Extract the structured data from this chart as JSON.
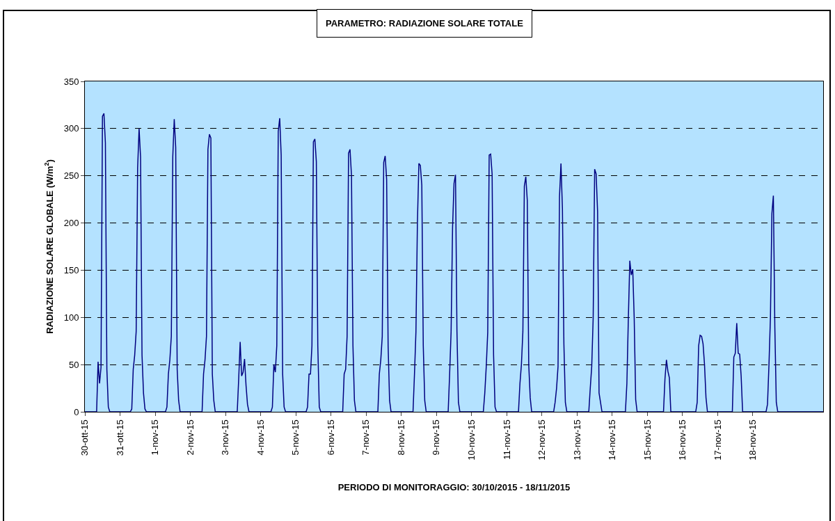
{
  "chart_data": {
    "type": "line",
    "title": "PARAMETRO: RADIAZIONE SOLARE TOTALE",
    "xlabel": "PERIODO DI MONITORAGGIO: 30/10/2015 - 18/11/2015",
    "ylabel": "RADIAZIONE SOLARE GLOBALE (W/m$^{2}$)",
    "xlim": [
      "2015-10-30",
      "2015-11-20"
    ],
    "xticks": [
      {
        "value": "2015-10-30",
        "label": "30-ott-15"
      },
      {
        "value": "2015-10-31",
        "label": "31-ott-15"
      },
      {
        "value": "2015-11-01",
        "label": "1-nov-15"
      },
      {
        "value": "2015-11-02",
        "label": "2-nov-15"
      },
      {
        "value": "2015-11-03",
        "label": "3-nov-15"
      },
      {
        "value": "2015-11-04",
        "label": "4-nov-15"
      },
      {
        "value": "2015-11-05",
        "label": "5-nov-15"
      },
      {
        "value": "2015-11-06",
        "label": "6-nov-15"
      },
      {
        "value": "2015-11-07",
        "label": "7-nov-15"
      },
      {
        "value": "2015-11-08",
        "label": "8-nov-15"
      },
      {
        "value": "2015-11-09",
        "label": "9-nov-15"
      },
      {
        "value": "2015-11-10",
        "label": "10-nov-15"
      },
      {
        "value": "2015-11-11",
        "label": "11-nov-15"
      },
      {
        "value": "2015-11-12",
        "label": "12-nov-15"
      },
      {
        "value": "2015-11-13",
        "label": "13-nov-15"
      },
      {
        "value": "2015-11-14",
        "label": "14-nov-15"
      },
      {
        "value": "2015-11-15",
        "label": "15-nov-15"
      },
      {
        "value": "2015-11-16",
        "label": "16-nov-15"
      },
      {
        "value": "2015-11-17",
        "label": "17-nov-15"
      },
      {
        "value": "2015-11-18",
        "label": "18-nov-15"
      }
    ],
    "ylim": [
      0,
      350
    ],
    "yticks": [
      0,
      50,
      100,
      150,
      200,
      250,
      300,
      350
    ],
    "grid": "y",
    "marker": "none",
    "line_style": "solid",
    "series": [
      {
        "color": "#000080",
        "x": [
          "2015-10-30T00:00",
          "2015-10-30T08:00",
          "2015-10-30T09:00",
          "2015-10-30T10:00",
          "2015-10-30T11:00",
          "2015-10-30T12:00",
          "2015-10-30T13:00",
          "2015-10-30T14:00",
          "2015-10-30T15:00",
          "2015-10-30T16:00",
          "2015-10-30T17:00",
          "2015-10-31T07:00",
          "2015-10-31T08:00",
          "2015-10-31T09:00",
          "2015-10-31T10:00",
          "2015-10-31T11:00",
          "2015-10-31T12:00",
          "2015-10-31T13:00",
          "2015-10-31T14:00",
          "2015-10-31T15:00",
          "2015-10-31T16:00",
          "2015-10-31T17:00",
          "2015-10-31T18:00",
          "2015-11-01T07:00",
          "2015-11-01T08:00",
          "2015-11-01T09:00",
          "2015-11-01T10:00",
          "2015-11-01T11:00",
          "2015-11-01T12:00",
          "2015-11-01T13:00",
          "2015-11-01T14:00",
          "2015-11-01T15:00",
          "2015-11-01T16:00",
          "2015-11-01T17:00",
          "2015-11-02T08:00",
          "2015-11-02T09:00",
          "2015-11-02T10:00",
          "2015-11-02T11:00",
          "2015-11-02T12:00",
          "2015-11-02T13:00",
          "2015-11-02T14:00",
          "2015-11-02T15:00",
          "2015-11-02T16:00",
          "2015-11-02T17:00",
          "2015-11-03T08:00",
          "2015-11-03T09:00",
          "2015-11-03T10:00",
          "2015-11-03T11:00",
          "2015-11-03T12:00",
          "2015-11-03T13:00",
          "2015-11-03T14:00",
          "2015-11-03T15:00",
          "2015-11-03T16:00",
          "2015-11-04T07:00",
          "2015-11-04T08:00",
          "2015-11-04T09:00",
          "2015-11-04T10:00",
          "2015-11-04T11:00",
          "2015-11-04T12:00",
          "2015-11-04T13:00",
          "2015-11-04T14:00",
          "2015-11-04T15:00",
          "2015-11-04T16:00",
          "2015-11-04T17:00",
          "2015-11-05T07:00",
          "2015-11-05T08:00",
          "2015-11-05T09:00",
          "2015-11-05T10:00",
          "2015-11-05T11:00",
          "2015-11-05T12:00",
          "2015-11-05T13:00",
          "2015-11-05T14:00",
          "2015-11-05T15:00",
          "2015-11-05T16:00",
          "2015-11-05T17:00",
          "2015-11-06T08:00",
          "2015-11-06T09:00",
          "2015-11-06T10:00",
          "2015-11-06T11:00",
          "2015-11-06T12:00",
          "2015-11-06T13:00",
          "2015-11-06T14:00",
          "2015-11-06T15:00",
          "2015-11-06T16:00",
          "2015-11-06T17:00",
          "2015-11-07T08:00",
          "2015-11-07T09:00",
          "2015-11-07T10:00",
          "2015-11-07T11:00",
          "2015-11-07T12:00",
          "2015-11-07T13:00",
          "2015-11-07T14:00",
          "2015-11-07T15:00",
          "2015-11-07T16:00",
          "2015-11-07T17:00",
          "2015-11-08T08:00",
          "2015-11-08T09:00",
          "2015-11-08T10:00",
          "2015-11-08T11:00",
          "2015-11-08T12:00",
          "2015-11-08T13:00",
          "2015-11-08T14:00",
          "2015-11-08T15:00",
          "2015-11-08T16:00",
          "2015-11-08T17:00",
          "2015-11-09T08:00",
          "2015-11-09T09:00",
          "2015-11-09T10:00",
          "2015-11-09T11:00",
          "2015-11-09T12:00",
          "2015-11-09T13:00",
          "2015-11-09T14:00",
          "2015-11-09T15:00",
          "2015-11-09T16:00",
          "2015-11-10T08:00",
          "2015-11-10T09:00",
          "2015-11-10T10:00",
          "2015-11-10T11:00",
          "2015-11-10T12:00",
          "2015-11-10T13:00",
          "2015-11-10T14:00",
          "2015-11-10T15:00",
          "2015-11-10T16:00",
          "2015-11-10T17:00",
          "2015-11-11T08:00",
          "2015-11-11T09:00",
          "2015-11-11T10:00",
          "2015-11-11T11:00",
          "2015-11-11T12:00",
          "2015-11-11T13:00",
          "2015-11-11T14:00",
          "2015-11-11T15:00",
          "2015-11-11T16:00",
          "2015-11-11T17:00",
          "2015-11-12T08:00",
          "2015-11-12T09:00",
          "2015-11-12T10:00",
          "2015-11-12T11:00",
          "2015-11-12T12:00",
          "2015-11-12T13:00",
          "2015-11-12T14:00",
          "2015-11-12T15:00",
          "2015-11-12T16:00",
          "2015-11-12T17:00",
          "2015-11-13T08:00",
          "2015-11-13T09:00",
          "2015-11-13T10:00",
          "2015-11-13T11:00",
          "2015-11-13T12:00",
          "2015-11-13T13:00",
          "2015-11-13T14:00",
          "2015-11-13T15:00",
          "2015-11-13T16:00",
          "2015-11-13T17:00",
          "2015-11-14T09:00",
          "2015-11-14T10:00",
          "2015-11-14T11:00",
          "2015-11-14T12:00",
          "2015-11-14T13:00",
          "2015-11-14T14:00",
          "2015-11-14T15:00",
          "2015-11-14T16:00",
          "2015-11-14T17:00",
          "2015-11-15T11:00",
          "2015-11-15T12:00",
          "2015-11-15T13:00",
          "2015-11-15T14:00",
          "2015-11-15T15:00",
          "2015-11-15T16:00",
          "2015-11-16T09:00",
          "2015-11-16T10:00",
          "2015-11-16T11:00",
          "2015-11-16T12:00",
          "2015-11-16T13:00",
          "2015-11-16T14:00",
          "2015-11-16T15:00",
          "2015-11-16T16:00",
          "2015-11-16T17:00",
          "2015-11-17T10:00",
          "2015-11-17T11:00",
          "2015-11-17T12:00",
          "2015-11-17T13:00",
          "2015-11-17T14:00",
          "2015-11-17T15:00",
          "2015-11-17T16:00",
          "2015-11-17T17:00",
          "2015-11-18T09:00",
          "2015-11-18T10:00",
          "2015-11-18T11:00",
          "2015-11-18T12:00",
          "2015-11-18T13:00",
          "2015-11-18T14:00",
          "2015-11-18T15:00",
          "2015-11-18T16:00",
          "2015-11-18T17:00",
          "2015-11-20T00:00"
        ],
        "values": [
          0,
          0,
          53,
          30,
          47,
          313,
          316,
          285,
          45,
          5,
          0,
          0,
          3,
          45,
          60,
          85,
          258,
          300,
          270,
          60,
          20,
          3,
          0,
          0,
          5,
          40,
          55,
          80,
          270,
          310,
          280,
          45,
          12,
          0,
          0,
          40,
          55,
          80,
          278,
          294,
          290,
          40,
          12,
          0,
          0,
          35,
          74,
          38,
          42,
          56,
          28,
          8,
          0,
          0,
          5,
          50,
          42,
          70,
          297,
          311,
          272,
          40,
          5,
          0,
          0,
          5,
          40,
          40,
          70,
          286,
          289,
          265,
          70,
          5,
          0,
          0,
          40,
          45,
          80,
          274,
          278,
          250,
          70,
          12,
          0,
          0,
          40,
          55,
          80,
          264,
          271,
          246,
          70,
          12,
          0,
          0,
          40,
          85,
          200,
          263,
          261,
          240,
          70,
          12,
          0,
          0,
          40,
          85,
          195,
          242,
          251,
          85,
          10,
          0,
          0,
          20,
          48,
          84,
          272,
          273,
          252,
          60,
          5,
          0,
          0,
          30,
          50,
          85,
          239,
          249,
          224,
          50,
          15,
          0,
          0,
          10,
          25,
          48,
          228,
          263,
          215,
          72,
          10,
          0,
          0,
          25,
          48,
          100,
          257,
          252,
          212,
          20,
          10,
          0,
          0,
          30,
          99,
          160,
          145,
          151,
          99,
          13,
          0,
          0,
          35,
          55,
          43,
          36,
          0,
          0,
          10,
          70,
          81,
          80,
          72,
          50,
          15,
          0,
          0,
          58,
          62,
          94,
          62,
          61,
          38,
          0,
          0,
          8,
          50,
          100,
          210,
          229,
          90,
          10,
          0,
          0
        ]
      }
    ]
  }
}
